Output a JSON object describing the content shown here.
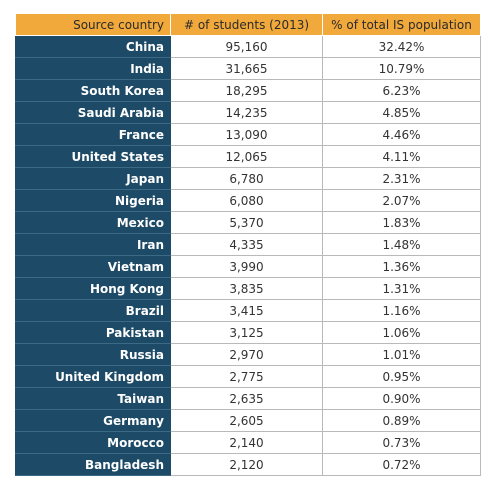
{
  "table": {
    "header": [
      "Source country",
      "# of students (2013)",
      "% of total IS population"
    ],
    "rows": [
      [
        "China",
        "95,160",
        "32.42%"
      ],
      [
        "India",
        "31,665",
        "10.79%"
      ],
      [
        "South Korea",
        "18,295",
        "6.23%"
      ],
      [
        "Saudi Arabia",
        "14,235",
        "4.85%"
      ],
      [
        "France",
        "13,090",
        "4.46%"
      ],
      [
        "United States",
        "12,065",
        "4.11%"
      ],
      [
        "Japan",
        "6,780",
        "2.31%"
      ],
      [
        "Nigeria",
        "6,080",
        "2.07%"
      ],
      [
        "Mexico",
        "5,370",
        "1.83%"
      ],
      [
        "Iran",
        "4,335",
        "1.48%"
      ],
      [
        "Vietnam",
        "3,990",
        "1.36%"
      ],
      [
        "Hong Kong",
        "3,835",
        "1.31%"
      ],
      [
        "Brazil",
        "3,415",
        "1.16%"
      ],
      [
        "Pakistan",
        "3,125",
        "1.06%"
      ],
      [
        "Russia",
        "2,970",
        "1.01%"
      ],
      [
        "United Kingdom",
        "2,775",
        "0.95%"
      ],
      [
        "Taiwan",
        "2,635",
        "0.90%"
      ],
      [
        "Germany",
        "2,605",
        "0.89%"
      ],
      [
        "Morocco",
        "2,140",
        "0.73%"
      ],
      [
        "Bangladesh",
        "2,120",
        "0.72%"
      ]
    ]
  }
}
